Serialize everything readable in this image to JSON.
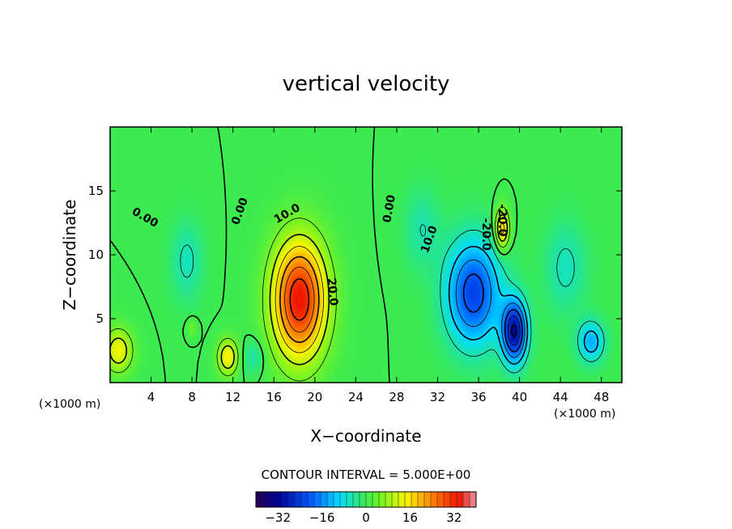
{
  "chart_data": {
    "type": "heatmap",
    "title": "vertical velocity",
    "xlabel": "X−coordinate",
    "ylabel": "Z−coordinate",
    "x_unit": "(×1000 m)",
    "y_unit": "(×1000 m)",
    "xlim": [
      0,
      50
    ],
    "ylim": [
      0,
      20
    ],
    "x_ticks": [
      4,
      8,
      12,
      16,
      20,
      24,
      28,
      32,
      36,
      40,
      44,
      48
    ],
    "y_ticks": [
      5,
      10,
      15
    ],
    "contour_interval_text": "CONTOUR INTERVAL = 5.000E+00",
    "colorbar": {
      "ticks": [
        "−32",
        "−16",
        "0",
        "16",
        "32"
      ],
      "tick_values": [
        -32,
        -16,
        0,
        16,
        32
      ],
      "range": [
        -40,
        40
      ]
    },
    "features": [
      {
        "x": 18.5,
        "z": 6.5,
        "peak": 34,
        "rx": 2.6,
        "rz": 4.6
      },
      {
        "x": 35.5,
        "z": 7.0,
        "peak": -23,
        "rx": 2.6,
        "rz": 4.0
      },
      {
        "x": 39.5,
        "z": 4.0,
        "peak": -30,
        "rx": 1.2,
        "rz": 2.4
      },
      {
        "x": 38.3,
        "z": 12.0,
        "peak": 18,
        "rx": 0.7,
        "rz": 1.6
      },
      {
        "x": 11.5,
        "z": 2.0,
        "peak": 15,
        "rx": 1.0,
        "rz": 1.4
      },
      {
        "x": 0.8,
        "z": 2.5,
        "peak": 14,
        "rx": 1.4,
        "rz": 1.7
      },
      {
        "x": 47,
        "z": 3.2,
        "peak": -13,
        "rx": 1.3,
        "rz": 1.6
      },
      {
        "x": 7.5,
        "z": 9.5,
        "peak": -6,
        "rx": 1.5,
        "rz": 3.0
      },
      {
        "x": 30.5,
        "z": 12.0,
        "peak": -5,
        "rx": 1.7,
        "rz": 3.0
      },
      {
        "x": 44.5,
        "z": 9.0,
        "peak": -6,
        "rx": 2.0,
        "rz": 3.5
      },
      {
        "x": 8.0,
        "z": 4.3,
        "peak": 4,
        "rx": 0.5,
        "rz": 0.7
      },
      {
        "x": 14.0,
        "z": 2.0,
        "peak": -5,
        "rx": 1.0,
        "rz": 1.3
      }
    ],
    "contour_labels": [
      {
        "text": "0.00",
        "x": 3.4,
        "z": 12.9,
        "angle": 30
      },
      {
        "text": "0.00",
        "x": 12.7,
        "z": 13.4,
        "angle": -70
      },
      {
        "text": "10.0",
        "x": 17.3,
        "z": 13.2,
        "angle": -30
      },
      {
        "text": "20.0",
        "x": 21.7,
        "z": 7.1,
        "angle": 85
      },
      {
        "text": "0.00",
        "x": 27.3,
        "z": 13.6,
        "angle": -80
      },
      {
        "text": "10.0",
        "x": 31.2,
        "z": 11.2,
        "angle": -70
      },
      {
        "text": "-20.0",
        "x": 36.7,
        "z": 11.6,
        "angle": 90
      },
      {
        "text": "-20.0",
        "x": 38.3,
        "z": 12.7,
        "angle": 90
      }
    ]
  }
}
